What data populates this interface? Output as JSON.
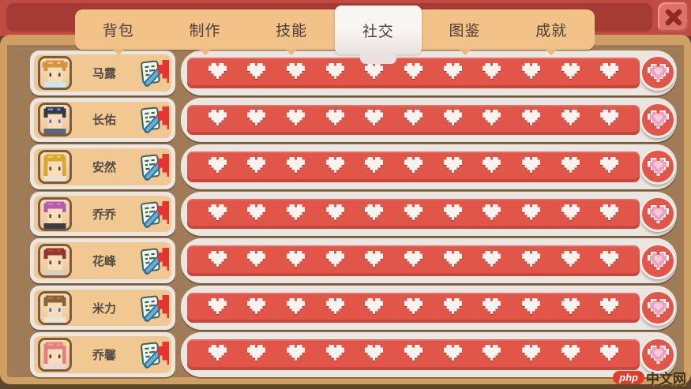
{
  "tabs": [
    {
      "id": "backpack",
      "label": "背包",
      "selected": false
    },
    {
      "id": "crafting",
      "label": "制作",
      "selected": false
    },
    {
      "id": "skills",
      "label": "技能",
      "selected": false
    },
    {
      "id": "social",
      "label": "社交",
      "selected": true
    },
    {
      "id": "collection",
      "label": "图鉴",
      "selected": false
    },
    {
      "id": "achievements",
      "label": "成就",
      "selected": false
    }
  ],
  "friends": {
    "bar": {
      "heart_count": 11,
      "progress": 1.0
    },
    "rows": [
      {
        "name": "马露",
        "hearts_filled": 11,
        "hearts_total": 11,
        "avatar": {
          "hair": "#d8913d",
          "shine": "#eec173",
          "eyes": "#4a4436",
          "clothes": "#cfe3ee",
          "long": false,
          "buns": true,
          "accent": ""
        }
      },
      {
        "name": "长佑",
        "hearts_filled": 11,
        "hearts_total": 11,
        "avatar": {
          "hair": "#343744",
          "shine": "#6a93d8",
          "eyes": "#4a68c8",
          "clothes": "#5a6678",
          "long": false,
          "buns": false,
          "accent": ""
        }
      },
      {
        "name": "安然",
        "hearts_filled": 11,
        "hearts_total": 11,
        "avatar": {
          "hair": "#d9a62e",
          "shine": "#efcb5a",
          "eyes": "#4a4436",
          "clothes": "#e8e2d4",
          "long": true,
          "buns": false,
          "accent": ""
        }
      },
      {
        "name": "乔乔",
        "hearts_filled": 11,
        "hearts_total": 11,
        "avatar": {
          "hair": "#b75bb0",
          "shine": "#cd7fc6",
          "eyes": "#4a4436",
          "clothes": "#3f3a44",
          "long": false,
          "buns": false,
          "accent": ""
        }
      },
      {
        "name": "花峰",
        "hearts_filled": 11,
        "hearts_total": 11,
        "avatar": {
          "hair": "#93352c",
          "shine": "#b04a3e",
          "eyes": "#4a4436",
          "clothes": "#d8cfc0",
          "long": false,
          "buns": false,
          "accent": ""
        }
      },
      {
        "name": "米力",
        "hearts_filled": 11,
        "hearts_total": 11,
        "avatar": {
          "hair": "#8a6236",
          "shine": "#a97f4c",
          "eyes": "#3d5fc0",
          "clothes": "#e8e4da",
          "long": false,
          "buns": false,
          "accent": ""
        }
      },
      {
        "name": "乔馨",
        "hearts_filled": 11,
        "hearts_total": 11,
        "avatar": {
          "hair": "#e57e7e",
          "shine": "#f0a0a0",
          "eyes": "#4a4436",
          "clothes": "#e8d8d8",
          "long": true,
          "buns": false,
          "accent": "#f2d24a"
        }
      }
    ]
  },
  "colors": {
    "top_strip": "#c04b43",
    "title_inset": "#a43b34",
    "close_bg": "#df6f67",
    "close_x": "#8c2b25",
    "panel": "#9f7c57",
    "panel_border": "#cf9f64",
    "tab_bar": "#f3c289",
    "tab_selected": "#f5f2ef",
    "row_track": "#eae6e1",
    "row_card": "#f2c892",
    "bar_fill": "#e2564a",
    "heart_small": "#f7f3ee",
    "heart_big": "#ee9fc2",
    "heart_big_inner": "#f6cbdb",
    "face": "#f9ddb8"
  },
  "watermark": {
    "badge": "php",
    "text": "中文网"
  }
}
